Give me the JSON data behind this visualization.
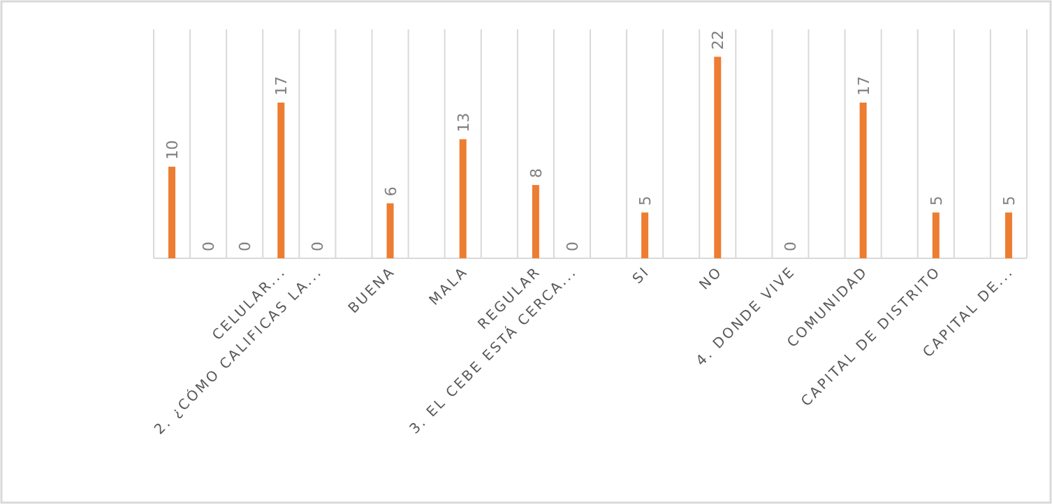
{
  "chart_data": {
    "type": "bar",
    "categories": [
      null,
      null,
      null,
      "CELULAR...",
      "2.   ¿CÓMO CALIFICAS LA...",
      null,
      "BUENA",
      null,
      "MALA",
      null,
      "REGULAR",
      "3.   EL CEBE ESTÁ CERCA...",
      null,
      "SI",
      null,
      "NO",
      null,
      "4.   DONDE VIVE",
      null,
      "COMUNIDAD",
      null,
      "CAPITAL DE DISTRITO",
      null,
      "CAPITAL DE..."
    ],
    "values": [
      10,
      0,
      0,
      17,
      0,
      null,
      6,
      null,
      13,
      null,
      8,
      0,
      null,
      5,
      null,
      22,
      null,
      0,
      null,
      17,
      null,
      5,
      null,
      5
    ],
    "color": "#ed7d31",
    "ylim": [
      0,
      25
    ],
    "grid": "x",
    "data_labels": true
  }
}
